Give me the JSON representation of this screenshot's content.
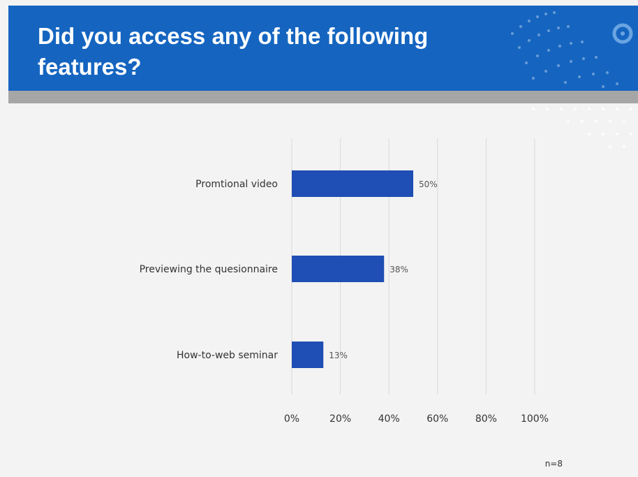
{
  "header": {
    "title": "Did you access any of the following features?"
  },
  "colors": {
    "header_bg": "#1565c0",
    "bar": "#1f4eb4",
    "gridline": "#d9d9d9"
  },
  "chart_data": {
    "type": "bar",
    "orientation": "horizontal",
    "categories": [
      "Promtional video",
      "Previewing the quesionnaire",
      "How-to-web seminar"
    ],
    "values": [
      50,
      38,
      13
    ],
    "value_labels": [
      "50%",
      "38%",
      "13%"
    ],
    "x_ticks": [
      "0%",
      "20%",
      "40%",
      "60%",
      "80%",
      "100%"
    ],
    "xlim": [
      0,
      100
    ],
    "title": "",
    "xlabel": "",
    "ylabel": "",
    "grid": true,
    "note": "n=8"
  }
}
